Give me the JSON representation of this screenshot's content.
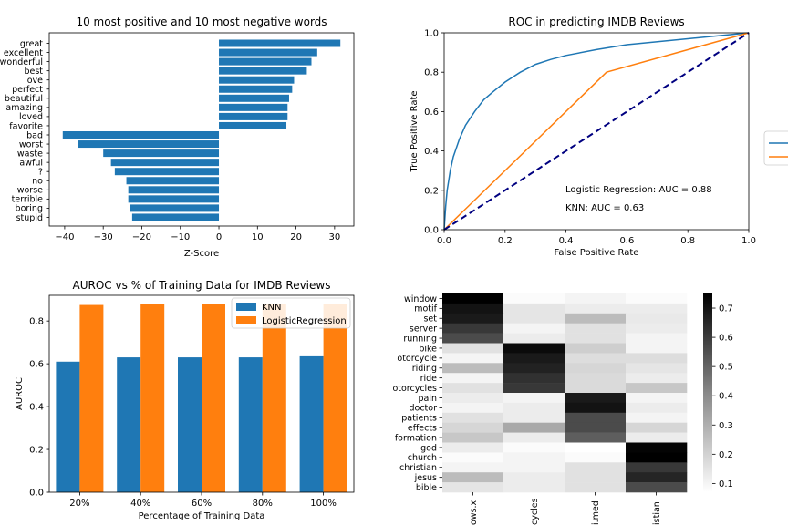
{
  "chart_data": [
    {
      "type": "bar",
      "orientation": "horizontal",
      "title": "10 most positive and 10 most negative words",
      "xlabel": "Z-Score",
      "ylabel": "",
      "xlim": [
        -44,
        35
      ],
      "xticks": [
        -40,
        -30,
        -20,
        -10,
        0,
        10,
        20,
        30
      ],
      "color": "#1f77b4",
      "categories": [
        "great",
        "excellent",
        "wonderful",
        "best",
        "love",
        "perfect",
        "beautiful",
        "amazing",
        "loved",
        "favorite",
        "bad",
        "worst",
        "waste",
        "awful",
        "?",
        "no",
        "worse",
        "terrible",
        "boring",
        "stupid"
      ],
      "category_labels": [
        "great",
        "excellent",
        "wonderful",
        "best",
        "love",
        "perfect",
        "beautiful",
        "amazing",
        "loved",
        "favorite",
        "bad",
        "worst",
        "waste",
        "awful",
        "?",
        "no",
        "worse",
        "terrible",
        "boring",
        "stupid"
      ],
      "values": [
        31.5,
        25.5,
        24.0,
        22.8,
        19.5,
        19.0,
        18.2,
        17.8,
        17.8,
        17.5,
        -40.5,
        -36.5,
        -30.0,
        -28.0,
        -27.0,
        -24.0,
        -23.5,
        -23.5,
        -23.0,
        -22.5
      ]
    },
    {
      "type": "line",
      "title": "ROC in predicting IMDB Reviews",
      "xlabel": "False Positive Rate",
      "ylabel": "True Positive Rate",
      "xlim": [
        0,
        1
      ],
      "ylim": [
        0,
        1
      ],
      "xticks": [
        "0.0",
        "0.2",
        "0.4",
        "0.6",
        "0.8",
        "1.0"
      ],
      "yticks": [
        "0.0",
        "0.2",
        "0.4",
        "0.6",
        "0.8",
        "1.0"
      ],
      "annotations": [
        "Logistic Regression: AUC = 0.88",
        "KNN: AUC = 0.63"
      ],
      "series": [
        {
          "color": "#1f77b4",
          "x": [
            0,
            0.005,
            0.01,
            0.02,
            0.03,
            0.05,
            0.07,
            0.1,
            0.13,
            0.16,
            0.2,
            0.25,
            0.3,
            0.35,
            0.4,
            0.5,
            0.6,
            0.7,
            0.8,
            0.9,
            1.0
          ],
          "y": [
            0,
            0.12,
            0.2,
            0.3,
            0.37,
            0.46,
            0.53,
            0.6,
            0.66,
            0.7,
            0.75,
            0.8,
            0.84,
            0.865,
            0.885,
            0.915,
            0.94,
            0.955,
            0.97,
            0.985,
            1.0
          ]
        },
        {
          "color": "#ff7f0e",
          "x": [
            0,
            0.533,
            1.0
          ],
          "y": [
            0,
            0.8,
            1.0
          ]
        },
        {
          "color": "#000080",
          "dash": true,
          "x": [
            0,
            1
          ],
          "y": [
            0,
            1
          ]
        }
      ]
    },
    {
      "type": "bar",
      "title": "AUROC vs % of Training Data for IMDB Reviews",
      "xlabel": "Percentage of Training Data",
      "ylabel": "AUROC",
      "ylim": [
        0,
        0.92
      ],
      "yticks": [
        "0.0",
        "0.2",
        "0.4",
        "0.6",
        "0.8"
      ],
      "legend_position": "top-right",
      "categories": [
        "20%",
        "40%",
        "60%",
        "80%",
        "100%"
      ],
      "series": [
        {
          "name": "KNN",
          "color": "#1f77b4",
          "values": [
            0.61,
            0.63,
            0.63,
            0.63,
            0.635
          ]
        },
        {
          "name": "LogisticRegression",
          "color": "#ff7f0e",
          "values": [
            0.875,
            0.88,
            0.88,
            0.88,
            0.88
          ]
        }
      ]
    },
    {
      "type": "heatmap",
      "colormap": "Greys",
      "colorbar_ticks": [
        "0.1",
        "0.2",
        "0.3",
        "0.4",
        "0.5",
        "0.6",
        "0.7"
      ],
      "vmin": 0.07,
      "vmax": 0.75,
      "rows": [
        "window",
        "motif",
        "set",
        "server",
        "running",
        "bike",
        "motorcycle",
        "riding",
        "ride",
        "motorcycles",
        "pain",
        "doctor",
        "patients",
        "effects",
        "information",
        "god",
        "church",
        "christian",
        "jesus",
        "bible"
      ],
      "row_labels_shown": [
        "window",
        "motif",
        "set",
        "server",
        "running",
        "bike",
        "otorcycle",
        "riding",
        "ride",
        "otorcycles",
        "pain",
        "doctor",
        "patients",
        "effects",
        "formation",
        "god",
        "church",
        "christian",
        "jesus",
        "bible"
      ],
      "columns_shown": [
        "ows.x",
        "cycles",
        "i.med",
        "istian"
      ],
      "values": [
        [
          0.75,
          0.08,
          0.1,
          0.08
        ],
        [
          0.7,
          0.14,
          0.12,
          0.12
        ],
        [
          0.68,
          0.14,
          0.25,
          0.13
        ],
        [
          0.6,
          0.1,
          0.15,
          0.12
        ],
        [
          0.55,
          0.12,
          0.15,
          0.1
        ],
        [
          0.15,
          0.72,
          0.2,
          0.1
        ],
        [
          0.1,
          0.68,
          0.16,
          0.16
        ],
        [
          0.25,
          0.66,
          0.18,
          0.14
        ],
        [
          0.1,
          0.62,
          0.17,
          0.12
        ],
        [
          0.15,
          0.6,
          0.17,
          0.22
        ],
        [
          0.12,
          0.1,
          0.68,
          0.1
        ],
        [
          0.1,
          0.12,
          0.7,
          0.12
        ],
        [
          0.15,
          0.12,
          0.55,
          0.1
        ],
        [
          0.18,
          0.3,
          0.55,
          0.18
        ],
        [
          0.22,
          0.12,
          0.5,
          0.12
        ],
        [
          0.12,
          0.08,
          0.06,
          0.74
        ],
        [
          0.08,
          0.1,
          0.08,
          0.8
        ],
        [
          0.1,
          0.1,
          0.15,
          0.6
        ],
        [
          0.25,
          0.12,
          0.15,
          0.65
        ],
        [
          0.14,
          0.12,
          0.15,
          0.55
        ]
      ]
    }
  ]
}
